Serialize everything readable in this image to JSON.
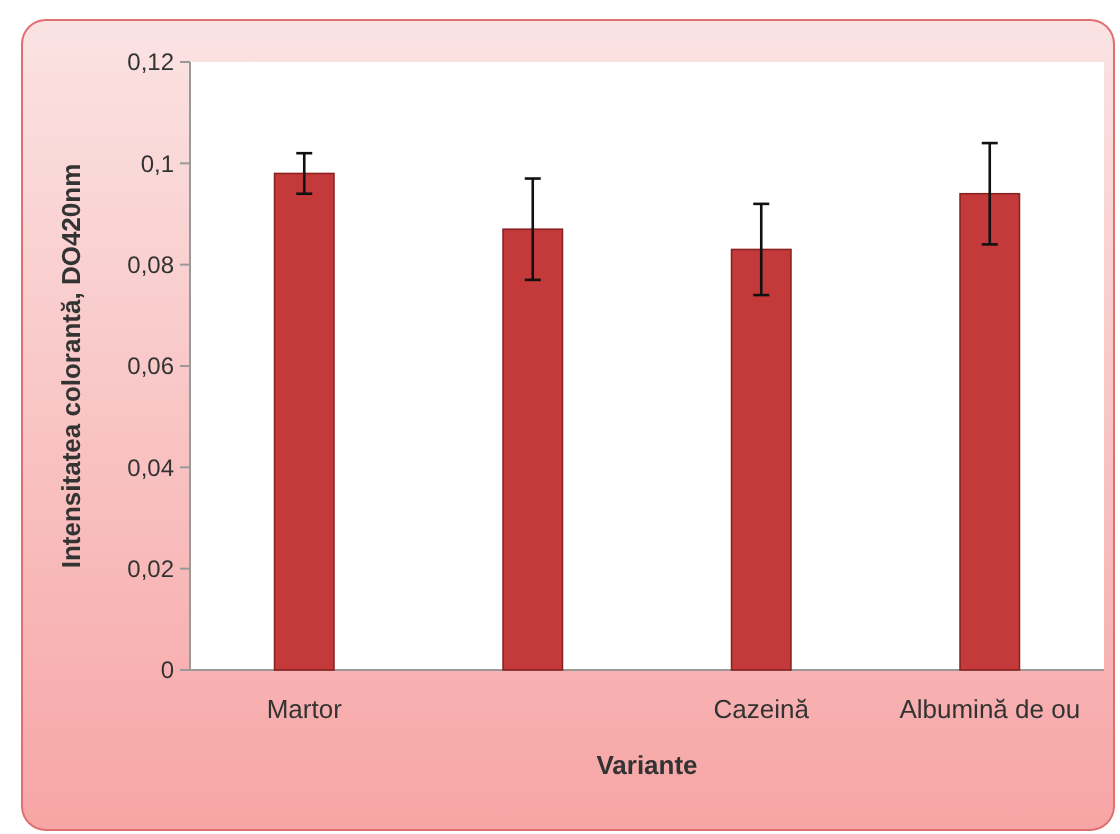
{
  "chart_data": {
    "type": "bar",
    "xlabel": "Variante",
    "ylabel": "Intensitatea colorantă, DO420nm",
    "categories": [
      "Martor",
      null,
      "Cazeină",
      "Albumină de ou"
    ],
    "values": [
      0.098,
      0.087,
      0.083,
      0.094
    ],
    "errors": [
      0.004,
      0.01,
      0.009,
      0.01
    ],
    "color": "#c4393a",
    "ylim": [
      0,
      0.12
    ],
    "yticks": [
      {
        "value": 0,
        "label": "0"
      },
      {
        "value": 0.02,
        "label": "0,02"
      },
      {
        "value": 0.04,
        "label": "0,04"
      },
      {
        "value": 0.06,
        "label": "0,06"
      },
      {
        "value": 0.08,
        "label": "0,08"
      },
      {
        "value": 0.1,
        "label": "0,1"
      },
      {
        "value": 0.12,
        "label": "0,12"
      }
    ],
    "grid": false
  }
}
